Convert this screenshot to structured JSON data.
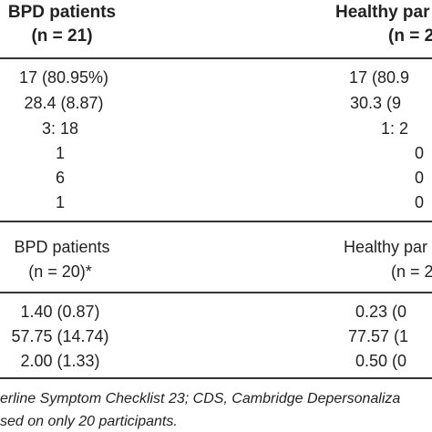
{
  "table1": {
    "header": {
      "col1_title": "BPD patients",
      "col1_n": "(n = 21)",
      "col2_title": "Healthy par",
      "col2_n": "(n = 2"
    },
    "rows": [
      {
        "c1": "17 (80.95%)",
        "c2": "17 (80.9"
      },
      {
        "c1": "28.4 (8.87)",
        "c2": "30.3 (9"
      },
      {
        "c1": "3: 18",
        "c2": "1: 2"
      },
      {
        "c1": "1",
        "c2": "0"
      },
      {
        "c1": "6",
        "c2": "0"
      },
      {
        "c1": "1",
        "c2": "0"
      }
    ]
  },
  "table2": {
    "header": {
      "col1_title": "BPD patients",
      "col1_n": "(n = 20)*",
      "col2_title": "Healthy par",
      "col2_n": "(n = 2"
    },
    "rows": [
      {
        "c1": "1.40 (0.87)",
        "c2": "0.23 (0"
      },
      {
        "c1": "57.75 (14.74)",
        "c2": "77.57 (1"
      },
      {
        "c1": "2.00 (1.33)",
        "c2": "0.50 (0"
      }
    ]
  },
  "footnotes": {
    "line1": "erline Symptom Checklist 23; CDS, Cambridge Depersonaliza",
    "line2": "sed on only 20 participants."
  }
}
